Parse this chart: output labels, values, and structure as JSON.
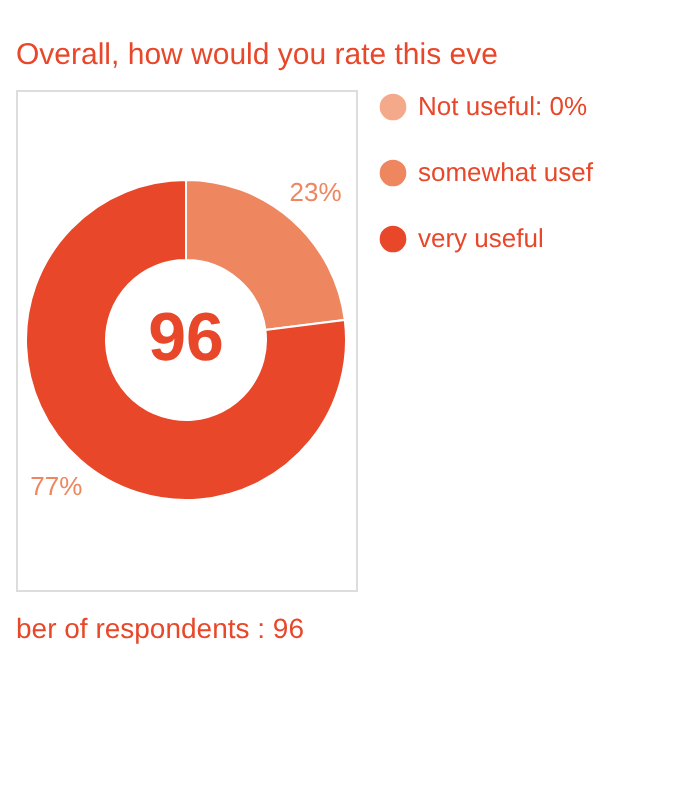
{
  "chart_data": {
    "type": "donut",
    "title": "Overall, how would you rate this eve",
    "categories": [
      "Not useful: 0%",
      "somewhat usef",
      "very useful"
    ],
    "values": [
      0,
      23,
      77
    ],
    "colors": [
      "#f4a98a",
      "#ee8660",
      "#e8472a"
    ],
    "value_labels": [
      null,
      "23%",
      "77%"
    ],
    "annotations": [
      "96",
      "ber of respondents : 96"
    ],
    "legend": "right"
  }
}
